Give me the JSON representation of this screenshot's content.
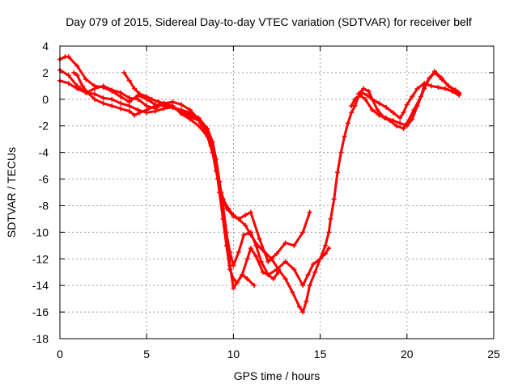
{
  "chart_data": {
    "type": "scatter",
    "title": "Day 079 of 2015, Sidereal Day-to-day VTEC variation (SDTVAR) for receiver belf",
    "xlabel": "GPS time / hours",
    "ylabel": "SDTVAR / TECUs",
    "xlim": [
      0,
      25
    ],
    "ylim": [
      -18,
      4
    ],
    "xticks": [
      0,
      5,
      10,
      15,
      20,
      25
    ],
    "yticks": [
      -18,
      -16,
      -14,
      -12,
      -10,
      -8,
      -6,
      -4,
      -2,
      0,
      2,
      4
    ],
    "grid": true,
    "marker": "+",
    "colors": {
      "series": "#ff0000",
      "grid": "#a0a0a0",
      "axis": "#000000"
    },
    "series": [
      {
        "x": [
          0,
          0.3,
          0.5,
          1.0,
          1.5,
          2.0,
          2.5,
          3.0,
          3.5,
          4.0,
          4.5,
          5.0,
          5.5,
          6.0,
          6.5,
          7.0,
          7.5,
          8.0,
          8.5,
          8.8,
          9.0,
          9.2,
          9.4,
          9.6,
          9.8,
          10.0,
          10.2,
          10.5,
          10.8,
          11.2
        ],
        "y": [
          3.0,
          3.2,
          3.2,
          2.5,
          1.5,
          1.0,
          0.9,
          0.6,
          0.2,
          -0.2,
          0.3,
          0.0,
          -0.4,
          -0.5,
          -0.6,
          -0.8,
          -1.0,
          -1.4,
          -2.2,
          -3.2,
          -4.5,
          -6.2,
          -8.0,
          -10.0,
          -12.5,
          -14.2,
          -13.8,
          -13.2,
          -13.5,
          -14.0
        ]
      },
      {
        "x": [
          0,
          0.5,
          1.0,
          1.5,
          2.0,
          2.5,
          3.0,
          3.5,
          4.0,
          4.5,
          5.0,
          5.5,
          6.0,
          6.5,
          7.0,
          7.5,
          8.0,
          8.5,
          8.8,
          9.0,
          9.2,
          9.5,
          9.8,
          10.0,
          10.3,
          10.6,
          11.0,
          11.3,
          11.6,
          12.0,
          12.3,
          12.6
        ],
        "y": [
          2.2,
          1.8,
          1.0,
          0.5,
          0.4,
          0.1,
          0.0,
          -0.3,
          -0.5,
          -0.8,
          -1.0,
          -0.9,
          -0.7,
          -0.6,
          -1.0,
          -1.3,
          -1.6,
          -2.6,
          -3.8,
          -5.0,
          -7.0,
          -9.5,
          -11.5,
          -12.5,
          -11.5,
          -10.2,
          -10.0,
          -11.0,
          -12.2,
          -13.2,
          -13.5,
          -13.0
        ]
      },
      {
        "x": [
          0,
          0.5,
          1.0,
          1.5,
          2.0,
          2.5,
          3.0,
          3.5,
          4.0,
          4.5,
          5.0,
          5.5,
          6.0,
          6.5,
          7.0,
          7.5,
          8.0,
          8.5,
          8.8,
          9.0,
          9.3,
          9.6,
          10.0,
          10.3,
          10.7,
          11.0,
          11.5,
          12.0,
          12.5,
          13.0,
          13.5,
          14.0,
          14.4
        ],
        "y": [
          1.4,
          1.2,
          0.8,
          0.5,
          0.8,
          1.0,
          0.7,
          0.5,
          0.1,
          0.0,
          -0.5,
          -0.7,
          -0.3,
          -0.5,
          -1.1,
          -1.5,
          -2.0,
          -2.8,
          -4.0,
          -5.4,
          -7.0,
          -8.2,
          -8.8,
          -9.0,
          -8.7,
          -8.5,
          -10.5,
          -12.2,
          -11.6,
          -10.8,
          -11.0,
          -10.0,
          -8.5
        ]
      },
      {
        "x": [
          0.8,
          1.0,
          1.3,
          1.6,
          2.0,
          2.5,
          3.0,
          3.5,
          4.0,
          4.3,
          4.6,
          5.0,
          5.5,
          6.0,
          6.5,
          7.0,
          7.5,
          8.0,
          8.4,
          8.7,
          9.0,
          9.2,
          9.4,
          9.6,
          9.8,
          10.0,
          10.2,
          10.5,
          10.8,
          11.0,
          11.3,
          11.7,
          12.0,
          12.5,
          13.0,
          13.5,
          14.0,
          14.3,
          14.6,
          15.0,
          15.3,
          15.5
        ],
        "y": [
          2.0,
          1.8,
          1.0,
          0.5,
          0.0,
          -0.3,
          -0.5,
          -0.7,
          -0.9,
          -1.2,
          -1.0,
          -0.8,
          -0.5,
          -0.3,
          -0.2,
          -0.4,
          -0.8,
          -1.5,
          -2.3,
          -3.5,
          -5.0,
          -7.0,
          -9.0,
          -11.0,
          -12.8,
          -13.5,
          -13.8,
          -13.2,
          -12.0,
          -11.2,
          -11.8,
          -13.0,
          -13.2,
          -12.8,
          -12.2,
          -12.8,
          -14.0,
          -13.2,
          -12.4,
          -12.0,
          -11.6,
          -11.2
        ]
      },
      {
        "x": [
          3.7,
          4.0,
          4.3,
          4.6,
          5.0,
          5.3,
          5.7,
          6.0,
          6.5,
          7.0,
          7.5,
          8.0,
          8.4,
          8.8,
          9.1,
          9.4,
          9.7,
          10.0,
          10.3,
          10.7,
          11.0,
          11.4,
          11.8,
          12.2,
          12.6,
          13.0,
          13.4,
          13.8,
          14.0,
          14.2,
          14.4,
          14.7,
          15.0,
          15.3,
          15.5,
          15.6,
          15.8,
          16.0,
          16.2,
          16.4,
          16.6,
          16.8,
          17.0,
          17.2,
          17.4,
          17.7,
          18.0,
          18.4,
          18.8,
          19.2,
          19.6,
          19.8,
          20.0,
          20.3,
          20.6,
          21.0,
          21.4,
          21.8,
          22.2,
          22.6,
          23.0
        ],
        "y": [
          2.0,
          1.4,
          0.8,
          0.4,
          0.2,
          0.0,
          -0.2,
          -0.3,
          -0.6,
          -0.9,
          -1.2,
          -1.5,
          -2.3,
          -4.0,
          -6.0,
          -7.5,
          -8.2,
          -8.7,
          -9.0,
          -9.5,
          -10.2,
          -11.0,
          -11.5,
          -12.0,
          -12.8,
          -13.5,
          -14.5,
          -15.6,
          -16.0,
          -15.2,
          -14.0,
          -13.0,
          -12.0,
          -11.0,
          -10.0,
          -9.0,
          -7.5,
          -5.5,
          -4.0,
          -2.8,
          -1.8,
          -1.0,
          -0.5,
          0.2,
          0.5,
          0.3,
          0.0,
          -0.3,
          -0.6,
          -1.0,
          -1.4,
          -1.0,
          -0.4,
          0.2,
          0.8,
          1.2,
          1.0,
          0.9,
          0.8,
          0.6,
          0.3
        ]
      },
      {
        "x": [
          16.8,
          17.0,
          17.3,
          17.6,
          18.0,
          18.4,
          18.8,
          19.2,
          19.6,
          20.0,
          20.3,
          20.6,
          21.0,
          21.3,
          21.6,
          22.0,
          22.4,
          22.8,
          23.0
        ],
        "y": [
          -0.5,
          0.0,
          0.3,
          0.0,
          -0.8,
          -1.2,
          -1.4,
          -1.6,
          -1.8,
          -2.0,
          -1.5,
          -0.5,
          0.8,
          1.6,
          2.0,
          1.5,
          1.0,
          0.7,
          0.5
        ]
      },
      {
        "x": [
          17.2,
          17.5,
          17.8,
          18.0,
          18.3,
          18.7,
          19.0,
          19.4,
          19.8,
          20.0,
          20.4,
          20.8,
          21.0,
          21.3,
          21.6,
          22.0,
          22.4,
          22.8,
          23.0
        ],
        "y": [
          0.4,
          0.8,
          0.6,
          0.0,
          -0.8,
          -1.4,
          -1.6,
          -2.0,
          -2.2,
          -1.8,
          -0.8,
          0.2,
          1.0,
          1.6,
          2.1,
          1.6,
          1.0,
          0.6,
          0.4
        ]
      }
    ]
  }
}
